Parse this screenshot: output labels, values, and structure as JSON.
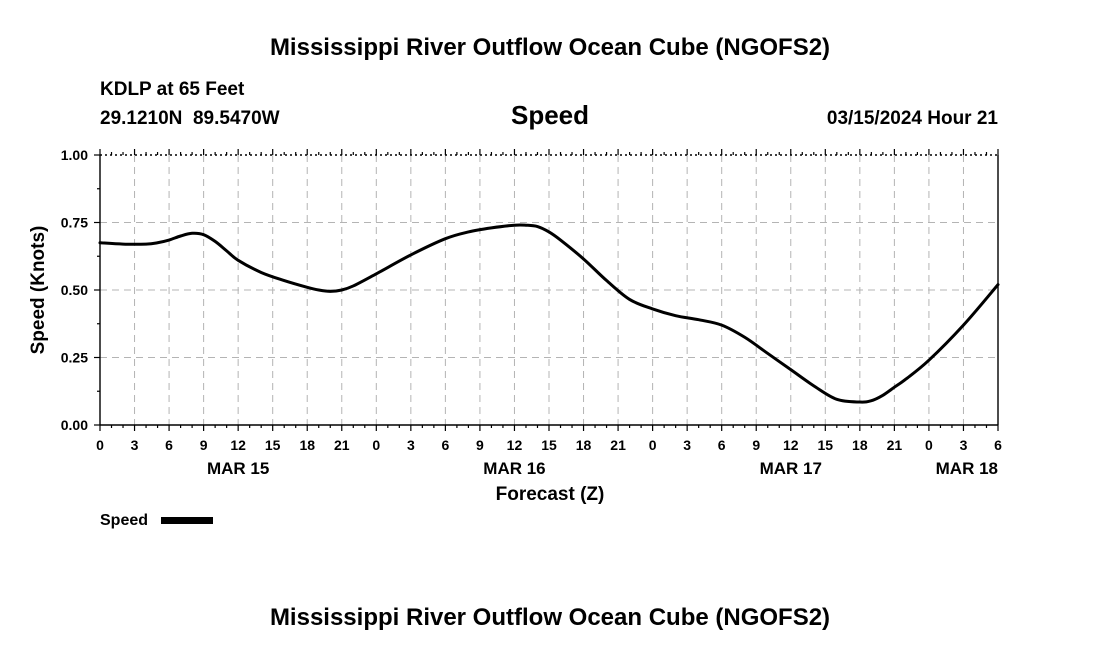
{
  "header": {
    "title": "Mississippi River Outflow Ocean Cube (NGOFS2)",
    "station": "KDLP at 65 Feet",
    "coords": "29.1210N  89.5470W",
    "subtitle": "Speed",
    "datetime": "03/15/2024 Hour 21"
  },
  "footer": {
    "title": "Mississippi River Outflow Ocean Cube (NGOFS2)"
  },
  "legend": {
    "label": "Speed",
    "line_color": "#000000"
  },
  "chart_data": {
    "type": "line",
    "title": "Speed",
    "xlabel": "Forecast (Z)",
    "ylabel": "Speed (Knots)",
    "xlim": [
      0,
      78
    ],
    "ylim": [
      0,
      1.0
    ],
    "grid": true,
    "legend_position": "bottom-left",
    "x_tick_labels": [
      "0",
      "3",
      "6",
      "9",
      "12",
      "15",
      "18",
      "21",
      "0",
      "3",
      "6",
      "9",
      "12",
      "15",
      "18",
      "21",
      "0",
      "3",
      "6",
      "9",
      "12",
      "15",
      "18",
      "21",
      "0",
      "3",
      "6"
    ],
    "y_tick_labels": [
      "0.00",
      "0.25",
      "0.50",
      "0.75",
      "1.00"
    ],
    "y_tick_values": [
      0,
      0.25,
      0.5,
      0.75,
      1.0
    ],
    "date_labels": [
      {
        "label": "MAR 15",
        "hour": 12
      },
      {
        "label": "MAR 16",
        "hour": 36
      },
      {
        "label": "MAR 17",
        "hour": 60
      },
      {
        "label": "MAR 18",
        "hour": 78
      }
    ],
    "series": [
      {
        "name": "Speed",
        "color": "#000000",
        "x": [
          0,
          2,
          4,
          5,
          6,
          7,
          8,
          9,
          10,
          11,
          12,
          14,
          16,
          18,
          19,
          20,
          21,
          22,
          24,
          27,
          30,
          32,
          34,
          36,
          37,
          38,
          39,
          40,
          42,
          44,
          46,
          48,
          50,
          52,
          54,
          56,
          58,
          60,
          62,
          64,
          66,
          67,
          68,
          69,
          70,
          72,
          75,
          78
        ],
        "values": [
          0.675,
          0.67,
          0.67,
          0.675,
          0.685,
          0.7,
          0.71,
          0.705,
          0.68,
          0.645,
          0.61,
          0.565,
          0.535,
          0.51,
          0.5,
          0.495,
          0.5,
          0.515,
          0.56,
          0.63,
          0.69,
          0.715,
          0.73,
          0.74,
          0.74,
          0.735,
          0.715,
          0.685,
          0.615,
          0.535,
          0.465,
          0.43,
          0.405,
          0.39,
          0.37,
          0.325,
          0.265,
          0.205,
          0.145,
          0.095,
          0.085,
          0.09,
          0.11,
          0.14,
          0.17,
          0.24,
          0.37,
          0.52
        ]
      }
    ]
  }
}
